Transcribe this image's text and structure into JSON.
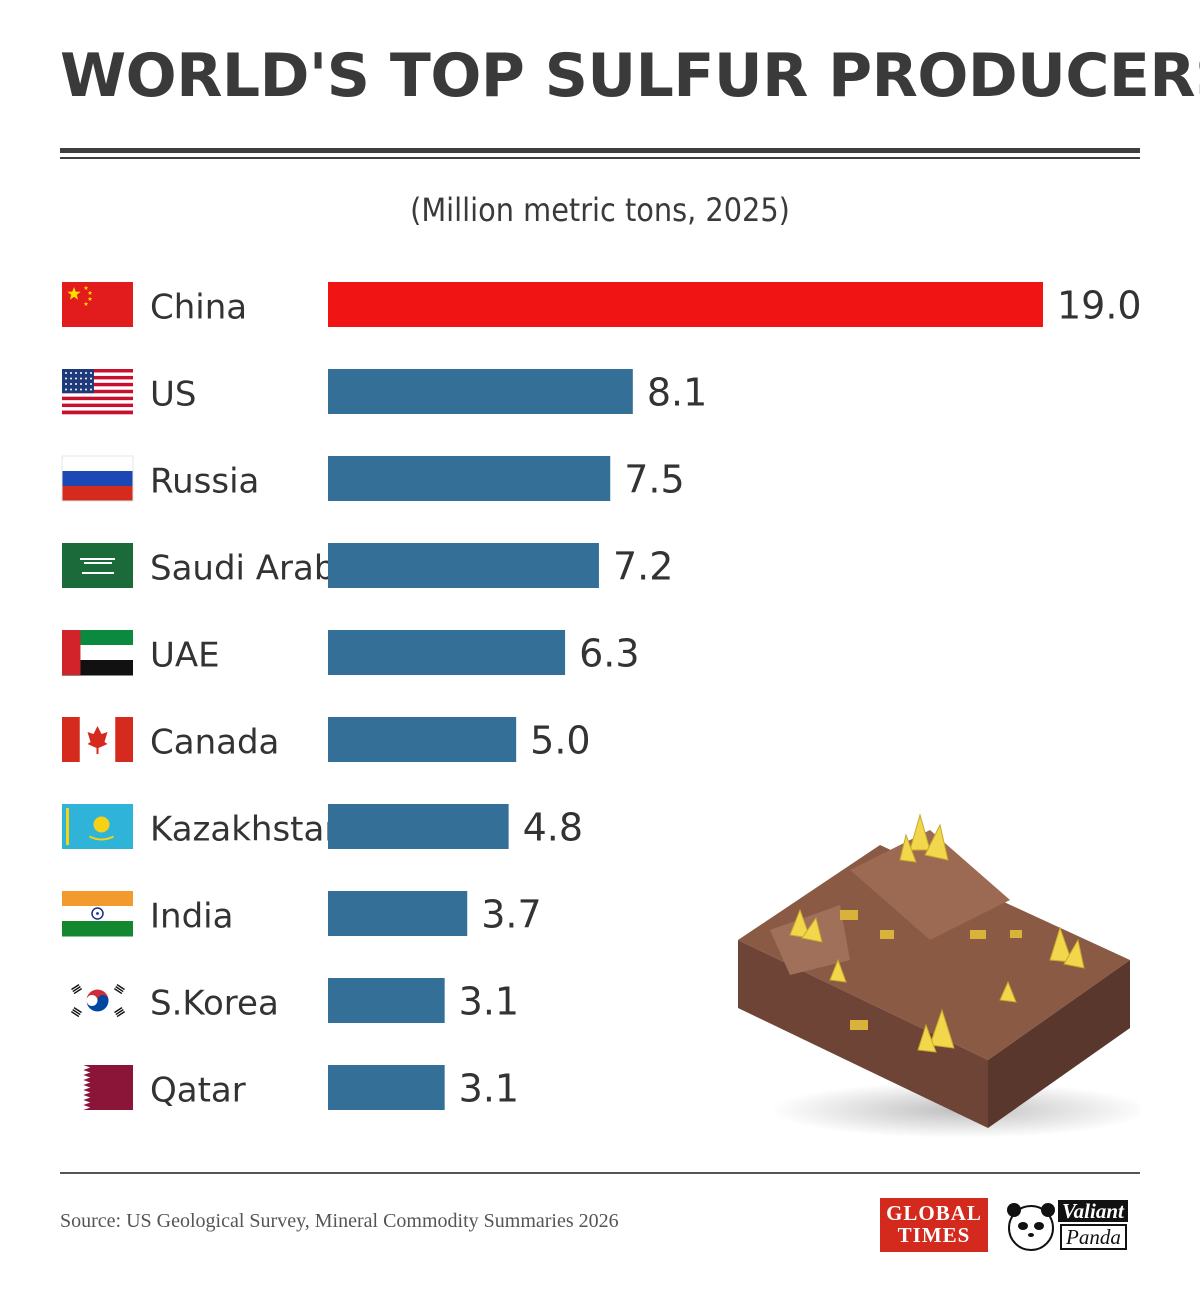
{
  "title": "WORLD'S TOP SULFUR PRODUCERS",
  "subtitle": "(Million metric tons, 2025)",
  "source": "Source: US Geological Survey, Mineral Commodity Summaries 2026",
  "logos": {
    "global_times_line1": "GLOBAL",
    "global_times_line2": "TIMES",
    "valiant": "Valiant",
    "panda": "Panda"
  },
  "colors": {
    "highlight_bar": "#f01414",
    "bar": "#346f98",
    "title": "#3a3a3a",
    "label": "#333333"
  },
  "chart_data": {
    "type": "bar",
    "orientation": "horizontal",
    "title": "WORLD'S TOP SULFUR PRODUCERS",
    "subtitle": "(Million metric tons, 2025)",
    "xlabel": "",
    "ylabel": "",
    "xlim": [
      0,
      19.0
    ],
    "grid": false,
    "legend": "none",
    "categories": [
      "China",
      "US",
      "Russia",
      "Saudi Arabia",
      "UAE",
      "Canada",
      "Kazakhstan",
      "India",
      "S.Korea",
      "Qatar"
    ],
    "values": [
      19.0,
      8.1,
      7.5,
      7.2,
      6.3,
      5.0,
      4.8,
      3.7,
      3.1,
      3.1
    ],
    "value_labels": [
      "19.0",
      "8.1",
      "7.5",
      "7.2",
      "6.3",
      "5.0",
      "4.8",
      "3.7",
      "3.1",
      "3.1"
    ],
    "flags": [
      "china-flag",
      "us-flag",
      "russia-flag",
      "saudi-arabia-flag",
      "uae-flag",
      "canada-flag",
      "kazakhstan-flag",
      "india-flag",
      "south-korea-flag",
      "qatar-flag"
    ],
    "highlight_index": 0
  }
}
